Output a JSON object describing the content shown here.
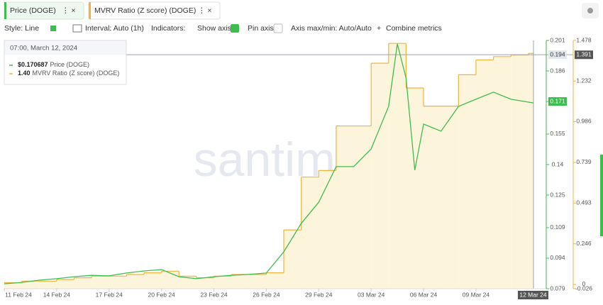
{
  "toolbar": {
    "style": "Style: Line",
    "interval": "Interval: Auto (1h)",
    "indicators": "Indicators:",
    "show_axis": "Show axis",
    "pin_axis": "Pin axis",
    "axis_minmax": "Axis max/min: Auto/Auto",
    "combine": "Combine metrics"
  },
  "watermark": "santiment",
  "chart_data": {
    "type": "line",
    "xlim": [
      "2024-02-11",
      "2024-03-12T07:00"
    ],
    "xticks": [
      {
        "value": "2024-02-11",
        "label": "11 Feb 24"
      },
      {
        "value": "2024-02-14",
        "label": "14 Feb 24"
      },
      {
        "value": "2024-02-17",
        "label": "17 Feb 24"
      },
      {
        "value": "2024-02-20",
        "label": "20 Feb 24"
      },
      {
        "value": "2024-02-23",
        "label": "23 Feb 24"
      },
      {
        "value": "2024-02-26",
        "label": "26 Feb 24"
      },
      {
        "value": "2024-02-29",
        "label": "29 Feb 24"
      },
      {
        "value": "2024-03-03",
        "label": "03 Mar 24"
      },
      {
        "value": "2024-03-06",
        "label": "06 Mar 24"
      },
      {
        "value": "2024-03-09",
        "label": "09 Mar 24"
      }
    ],
    "ylim": [
      0.079,
      0.201
    ],
    "yticks": [
      0.079,
      0.094,
      0.109,
      0.125,
      0.14,
      0.155,
      0.171,
      0.186,
      0.201
    ],
    "y2lim": [
      -0.026,
      1.478
    ],
    "y2ticks": [
      -0.026,
      0,
      0.246,
      0.493,
      0.739,
      0.986,
      1.232,
      1.478
    ],
    "crosshair": 0.194,
    "cursor_label": "12 Mar 24",
    "tooltip": {
      "title": "07:00, March 12, 2024",
      "values": [
        "$0.170687",
        "1.40"
      ]
    },
    "series": [
      {
        "name": "Price (DOGE)",
        "color": "#3dbd4e",
        "badge": 0.171,
        "x": [
          "2024-02-11",
          "2024-02-12",
          "2024-02-13",
          "2024-02-14",
          "2024-02-15",
          "2024-02-16",
          "2024-02-17",
          "2024-02-18",
          "2024-02-19",
          "2024-02-20",
          "2024-02-21",
          "2024-02-22",
          "2024-02-23",
          "2024-02-24",
          "2024-02-25",
          "2024-02-26",
          "2024-02-27",
          "2024-02-28",
          "2024-02-29",
          "2024-03-01",
          "2024-03-02",
          "2024-03-03",
          "2024-03-04",
          "2024-03-04T12:00",
          "2024-03-05",
          "2024-03-05T12:00",
          "2024-03-06",
          "2024-03-07",
          "2024-03-08",
          "2024-03-09",
          "2024-03-10",
          "2024-03-11",
          "2024-03-12T07:00"
        ],
        "values": [
          0.0814,
          0.0821,
          0.0832,
          0.0839,
          0.0849,
          0.0856,
          0.0853,
          0.0867,
          0.0877,
          0.0884,
          0.0849,
          0.0839,
          0.0849,
          0.0856,
          0.086,
          0.0867,
          0.0971,
          0.1111,
          0.1215,
          0.139,
          0.139,
          0.1477,
          0.1686,
          0.1993,
          0.1825,
          0.1372,
          0.1599,
          0.1564,
          0.1686,
          0.1721,
          0.1756,
          0.1721,
          0.1703
        ]
      },
      {
        "name": "MVRV Ratio (Z score) (DOGE)",
        "color": "#f0b43c",
        "axis": "y2",
        "badge": 1.391,
        "x": [
          "2024-02-11",
          "2024-02-12",
          "2024-02-13",
          "2024-02-14",
          "2024-02-15",
          "2024-02-16",
          "2024-02-17",
          "2024-02-18",
          "2024-02-19",
          "2024-02-20",
          "2024-02-21",
          "2024-02-22",
          "2024-02-23",
          "2024-02-24",
          "2024-02-25",
          "2024-02-26",
          "2024-02-27",
          "2024-02-28",
          "2024-02-29",
          "2024-03-01",
          "2024-03-02",
          "2024-03-03",
          "2024-03-04",
          "2024-03-05",
          "2024-03-06",
          "2024-03-07",
          "2024-03-08",
          "2024-03-09",
          "2024-03-10",
          "2024-03-11",
          "2024-03-12"
        ],
        "values": [
          0.01,
          0.02,
          0.02,
          0.03,
          0.04,
          0.05,
          0.05,
          0.06,
          0.07,
          0.08,
          0.05,
          0.04,
          0.05,
          0.06,
          0.06,
          0.07,
          0.33,
          0.65,
          0.69,
          0.96,
          0.96,
          1.34,
          1.46,
          1.19,
          1.08,
          1.08,
          1.27,
          1.36,
          1.38,
          1.39,
          1.4
        ]
      }
    ]
  }
}
